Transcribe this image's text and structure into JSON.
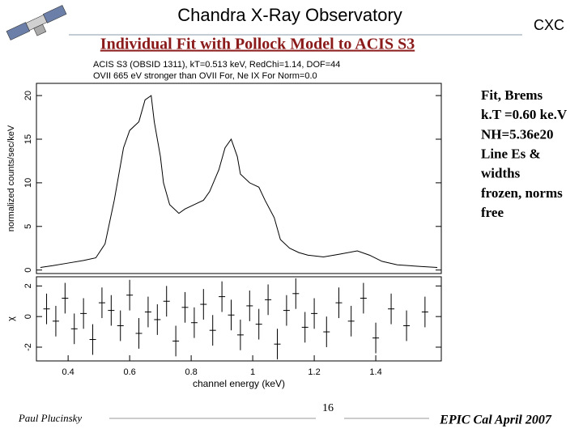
{
  "header": {
    "title": "Chandra X-Ray Observatory",
    "logo_text": "CXC"
  },
  "subtitle": "Individual Fit with Pollock Model to ACIS S3",
  "notes": [
    "Fit, Brems",
    "k.T =0.60 ke.V",
    "NH=5.36e20",
    "Line Es &",
    "widths",
    "frozen, norms",
    "free"
  ],
  "footer": {
    "author": "Paul Plucinsky",
    "page": "16",
    "event": "EPIC Cal April 2007"
  },
  "chart_data": [
    {
      "type": "line",
      "title": "ACIS S3 (OBSID 1311), kT=0.513 keV, RedChi=1.14, DOF=44",
      "subtitle": "OVII 665 eV stronger than OVII For, Ne IX For Norm=0.0",
      "ylabel": "normalized counts/sec/keV",
      "x": [
        0.31,
        0.35,
        0.4,
        0.45,
        0.49,
        0.52,
        0.55,
        0.58,
        0.6,
        0.63,
        0.65,
        0.67,
        0.68,
        0.7,
        0.71,
        0.73,
        0.76,
        0.78,
        0.81,
        0.84,
        0.86,
        0.89,
        0.91,
        0.93,
        0.95,
        0.96,
        0.99,
        1.02,
        1.04,
        1.07,
        1.09,
        1.12,
        1.15,
        1.18,
        1.23,
        1.28,
        1.34,
        1.38,
        1.42,
        1.47,
        1.55,
        1.6
      ],
      "values": [
        0.3,
        0.5,
        0.8,
        1.1,
        1.4,
        3.0,
        8,
        14,
        16,
        17,
        19.5,
        20,
        17,
        13,
        10,
        7.5,
        6.5,
        7,
        7.5,
        8,
        9,
        11.5,
        14,
        15,
        13,
        11,
        10,
        9.5,
        8,
        6,
        3.5,
        2.5,
        2,
        1.7,
        1.5,
        1.8,
        2.2,
        1.7,
        1,
        0.6,
        0.4,
        0.3
      ],
      "color": "#000000",
      "xlim": [
        0.297,
        1.613
      ],
      "ylim": [
        -0.4,
        21.4
      ],
      "yticks": [
        0,
        5,
        10,
        15,
        20
      ]
    },
    {
      "type": "errorbar",
      "xlabel": "channel energy (keV)",
      "ylabel": "χ",
      "x": [
        0.33,
        0.36,
        0.39,
        0.42,
        0.45,
        0.48,
        0.51,
        0.54,
        0.57,
        0.6,
        0.63,
        0.66,
        0.69,
        0.72,
        0.75,
        0.78,
        0.81,
        0.84,
        0.87,
        0.9,
        0.93,
        0.96,
        0.99,
        1.02,
        1.05,
        1.08,
        1.11,
        1.14,
        1.17,
        1.2,
        1.24,
        1.28,
        1.32,
        1.36,
        1.4,
        1.45,
        1.5,
        1.56
      ],
      "values": [
        0.5,
        -0.3,
        1.2,
        -0.8,
        0.2,
        -1.5,
        0.9,
        0.4,
        -0.6,
        1.4,
        -1.1,
        0.3,
        -0.2,
        1.0,
        -1.6,
        0.6,
        -0.4,
        0.8,
        -0.9,
        1.3,
        0.1,
        -1.2,
        0.7,
        -0.5,
        1.1,
        -1.8,
        0.4,
        1.5,
        -0.7,
        0.2,
        -1.0,
        0.9,
        -0.3,
        1.2,
        -1.4,
        0.5,
        -0.6,
        0.3
      ],
      "errors": [
        1,
        1,
        1,
        1,
        1,
        1,
        1,
        1,
        1,
        1,
        1,
        1,
        1,
        1,
        1,
        1,
        1,
        1,
        1,
        1,
        1,
        1,
        1,
        1,
        1,
        1,
        1,
        1,
        1,
        1,
        1,
        1,
        1,
        1,
        1,
        1,
        1,
        1
      ],
      "color": "#000000",
      "xlim": [
        0.297,
        1.613
      ],
      "ylim": [
        -2.9,
        2.6
      ],
      "yticks": [
        -2,
        0,
        2
      ],
      "xticks": [
        0.4,
        0.6,
        0.8,
        1,
        1.2,
        1.4
      ]
    }
  ]
}
